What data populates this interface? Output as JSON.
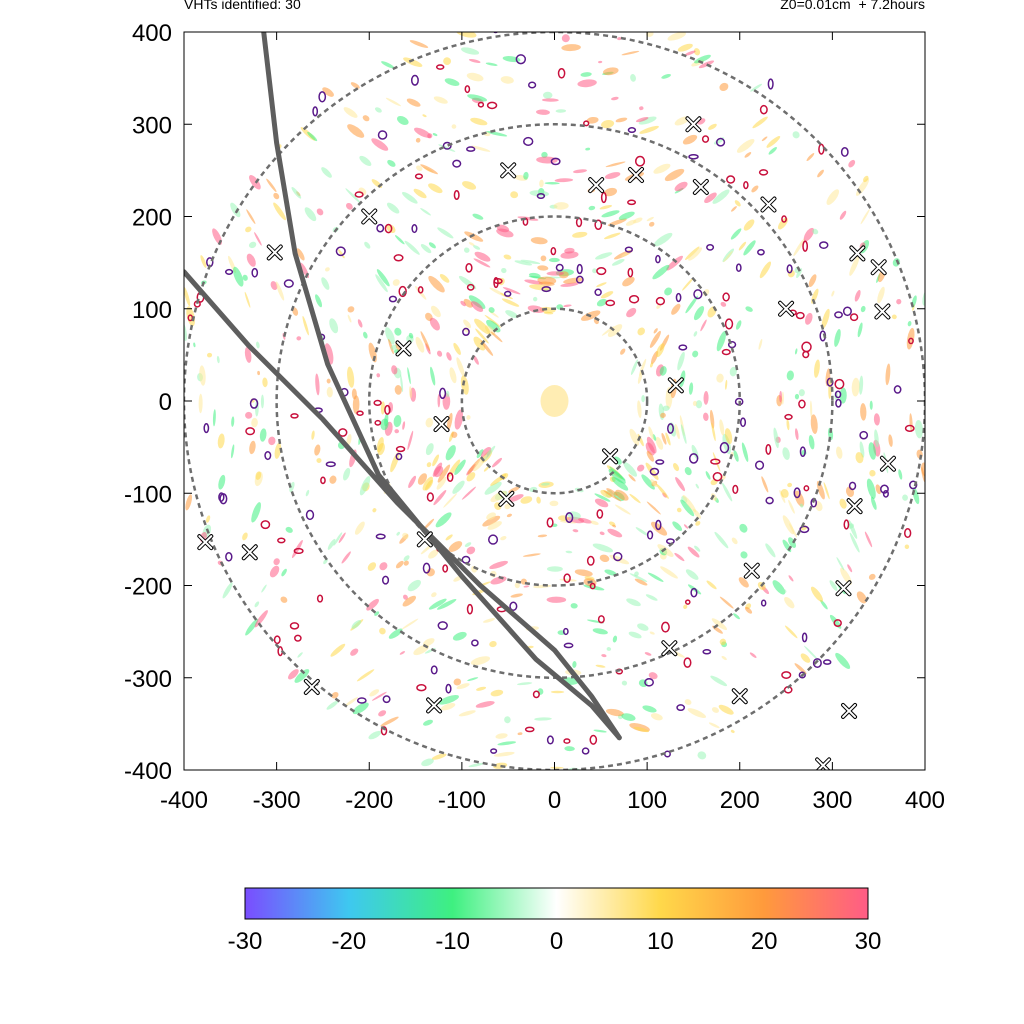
{
  "header": {
    "left": "VHTs identified: 30",
    "right": "Z0=0.01cm  + 7.2hours"
  },
  "chart_data": {
    "type": "scatter",
    "xlim": [
      -400,
      400
    ],
    "ylim": [
      -400,
      400
    ],
    "x_ticks": [
      -400,
      -300,
      -200,
      -100,
      0,
      100,
      200,
      300,
      400
    ],
    "y_ticks": [
      -400,
      -300,
      -200,
      -100,
      0,
      100,
      200,
      300,
      400
    ],
    "grid": false,
    "range_rings": [
      100,
      200,
      300,
      400
    ],
    "colorbar": {
      "min": -30,
      "max": 30,
      "ticks": [
        -30,
        -20,
        -10,
        0,
        10,
        20,
        30
      ],
      "colors": [
        "#7a4dff",
        "#3ec8f0",
        "#3ef080",
        "#ffffff",
        "#ffd84a",
        "#ff9a3c",
        "#ff5c86"
      ]
    },
    "tracks": [
      {
        "points": [
          [
            -314,
            400
          ],
          [
            -300,
            280
          ],
          [
            -280,
            160
          ],
          [
            -245,
            40
          ],
          [
            -190,
            -80
          ],
          [
            -100,
            -190
          ],
          [
            -20,
            -280
          ],
          [
            40,
            -330
          ],
          [
            70,
            -365
          ]
        ]
      },
      {
        "points": [
          [
            -400,
            140
          ],
          [
            -330,
            60
          ],
          [
            -250,
            -20
          ],
          [
            -170,
            -110
          ],
          [
            -80,
            -200
          ],
          [
            0,
            -270
          ],
          [
            40,
            -320
          ],
          [
            70,
            -365
          ]
        ]
      }
    ],
    "vht_markers": [
      [
        -302,
        161
      ],
      [
        -163,
        57
      ],
      [
        -122,
        -25
      ],
      [
        -52,
        -106
      ],
      [
        -377,
        -153
      ],
      [
        -329,
        -164
      ],
      [
        -262,
        -310
      ],
      [
        -130,
        -330
      ],
      [
        45,
        234
      ],
      [
        88,
        245
      ],
      [
        158,
        232
      ],
      [
        231,
        213
      ],
      [
        327,
        160
      ],
      [
        350,
        145
      ],
      [
        354,
        97
      ],
      [
        131,
        17
      ],
      [
        360,
        -68
      ],
      [
        324,
        -114
      ],
      [
        213,
        -184
      ],
      [
        124,
        -268
      ],
      [
        312,
        -203
      ],
      [
        318,
        -336
      ],
      [
        290,
        -395
      ],
      [
        -140,
        -150
      ],
      [
        250,
        100
      ],
      [
        150,
        300
      ],
      [
        -50,
        250
      ],
      [
        60,
        -60
      ],
      [
        -200,
        200
      ],
      [
        200,
        -320
      ]
    ]
  }
}
